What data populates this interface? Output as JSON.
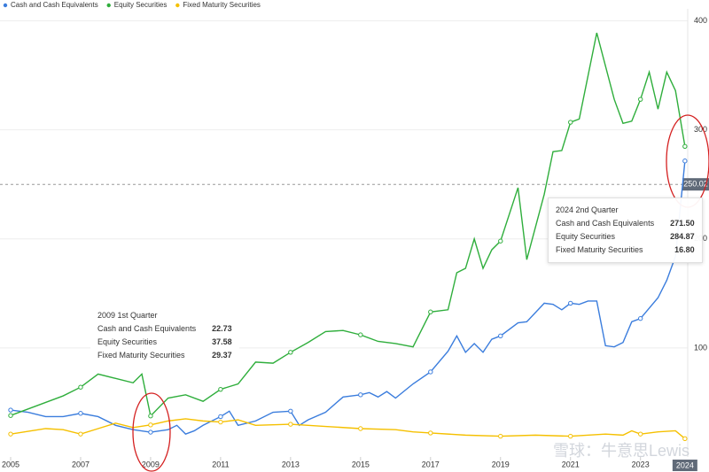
{
  "chart_data": {
    "type": "line",
    "legend": "top-left",
    "watermark": "雪球：牛意思Lewis",
    "xlim": [
      2005,
      2024.35
    ],
    "ylim": [
      0,
      411
    ],
    "xticks": [
      2005,
      2007,
      2009,
      2011,
      2013,
      2015,
      2017,
      2019,
      2021,
      2023
    ],
    "yticks": [
      100,
      200,
      300,
      400
    ],
    "grid": true,
    "crosshair": {
      "x": {
        "value": 2024.27,
        "label": "2024"
      },
      "y": 250.02
    },
    "series": [
      {
        "name": "Cash and Cash Equivalents",
        "color": "#3b7ddd",
        "x": [
          2005,
          2005.5,
          2006,
          2006.5,
          2007,
          2007.5,
          2008,
          2008.5,
          2009,
          2009.5,
          2009.75,
          2010,
          2010.25,
          2010.5,
          2011,
          2011.25,
          2011.5,
          2012,
          2012.5,
          2013,
          2013.25,
          2013.5,
          2014,
          2014.5,
          2015,
          2015.25,
          2015.5,
          2015.75,
          2016,
          2016.5,
          2017,
          2017.5,
          2017.75,
          2018,
          2018.25,
          2018.5,
          2018.75,
          2019,
          2019.5,
          2019.75,
          2020.25,
          2020.5,
          2020.75,
          2021,
          2021.25,
          2021.5,
          2021.75,
          2022,
          2022.25,
          2022.5,
          2022.75,
          2023,
          2023.5,
          2023.75,
          2024,
          2024.27
        ],
        "values": [
          43,
          41,
          37,
          37,
          40,
          37,
          29,
          25,
          22.73,
          25,
          29,
          21,
          24,
          29,
          37,
          42,
          29,
          33,
          41,
          42,
          29,
          34,
          41,
          55,
          57,
          59,
          55,
          60,
          54,
          67,
          78,
          97,
          111,
          96,
          104,
          96,
          108,
          111,
          123,
          124,
          141,
          140,
          135,
          141,
          140,
          143,
          143,
          102,
          101,
          105,
          124,
          127,
          146,
          162,
          184,
          271.5
        ]
      },
      {
        "name": "Equity Securities",
        "color": "#2fae3c",
        "x": [
          2005,
          2005.5,
          2006,
          2006.5,
          2007,
          2007.5,
          2008,
          2008.5,
          2008.75,
          2009,
          2009.5,
          2010,
          2010.5,
          2011,
          2011.5,
          2012,
          2012.5,
          2013,
          2013.5,
          2014,
          2014.5,
          2015,
          2015.5,
          2016,
          2016.5,
          2017,
          2017.5,
          2017.75,
          2018,
          2018.25,
          2018.5,
          2018.75,
          2019,
          2019.5,
          2019.75,
          2020.25,
          2020.5,
          2020.75,
          2021,
          2021.25,
          2021.75,
          2022.25,
          2022.5,
          2022.75,
          2023,
          2023.25,
          2023.5,
          2023.75,
          2024,
          2024.27
        ],
        "values": [
          38,
          44,
          50,
          56,
          64,
          76,
          72,
          68,
          76,
          37.58,
          54,
          57,
          51,
          62,
          67,
          87,
          86,
          96,
          105,
          115,
          116,
          112,
          106,
          104,
          101,
          133,
          135,
          169,
          173,
          200,
          173,
          190,
          198,
          247,
          181,
          241,
          280,
          281,
          307,
          310,
          389,
          328,
          306,
          308,
          328,
          353,
          319,
          353,
          336,
          284.87
        ]
      },
      {
        "name": "Fixed Maturity Securities",
        "color": "#f5c000",
        "x": [
          2005,
          2006,
          2006.5,
          2007,
          2007.5,
          2008,
          2008.5,
          2009,
          2009.5,
          2010,
          2010.5,
          2011,
          2011.5,
          2012,
          2013,
          2014,
          2015,
          2016,
          2016.5,
          2017,
          2018,
          2019,
          2020,
          2021,
          2022,
          2022.5,
          2022.75,
          2023,
          2023.5,
          2024,
          2024.27
        ],
        "values": [
          21,
          26,
          25,
          21,
          26,
          31,
          27,
          29.37,
          33,
          35,
          33,
          32,
          34,
          29,
          30,
          28,
          26,
          25,
          23,
          22,
          20,
          19,
          20,
          19,
          21,
          20,
          24,
          21,
          23,
          24,
          16.8
        ]
      }
    ],
    "tooltips": [
      {
        "title": "2009 1st Quarter",
        "items": [
          {
            "name": "Cash and Cash Equivalents",
            "value": 22.73
          },
          {
            "name": "Equity Securities",
            "value": 37.58
          },
          {
            "name": "Fixed Maturity Securities",
            "value": 29.37
          }
        ]
      },
      {
        "title": "2024 2nd Quarter",
        "items": [
          {
            "name": "Cash and Cash Equivalents",
            "value": 271.5,
            "label": "271.50"
          },
          {
            "name": "Equity Securities",
            "value": 284.87
          },
          {
            "name": "Fixed Maturity Securities",
            "value": 16.8,
            "label": "16.80"
          }
        ]
      }
    ]
  }
}
